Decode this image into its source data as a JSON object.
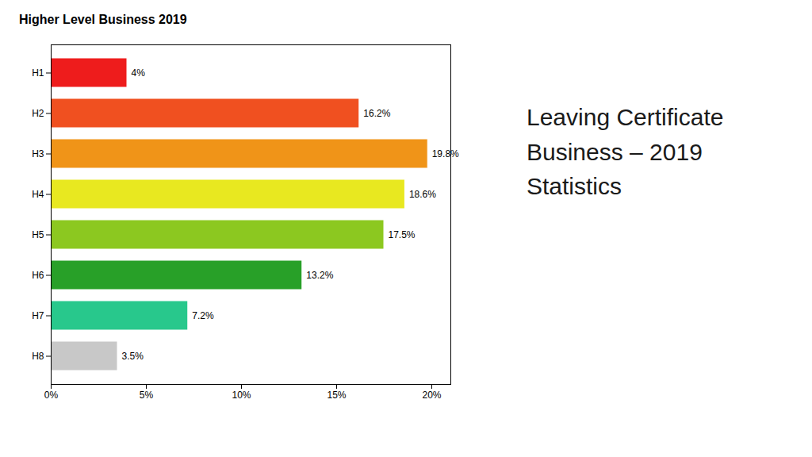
{
  "chart_data": {
    "type": "bar",
    "title": "Higher Level Business 2019",
    "orientation": "horizontal",
    "categories": [
      "H1",
      "H2",
      "H3",
      "H4",
      "H5",
      "H6",
      "H7",
      "H8"
    ],
    "values": [
      4.0,
      16.2,
      19.8,
      18.6,
      17.5,
      13.2,
      7.2,
      3.5
    ],
    "value_labels": [
      "4%",
      "16.2%",
      "19.8%",
      "18.6%",
      "17.5%",
      "13.2%",
      "7.2%",
      "3.5%"
    ],
    "colors": [
      "#ee1c1c",
      "#f05020",
      "#f09418",
      "#e8e820",
      "#8cc820",
      "#28a028",
      "#28c88c",
      "#c8c8c8"
    ],
    "data_labels": true,
    "grid": false,
    "xlim": [
      0,
      21
    ],
    "xticks": [
      {
        "value": 0,
        "label": "0%"
      },
      {
        "value": 5,
        "label": "5%"
      },
      {
        "value": 10,
        "label": "10%"
      },
      {
        "value": 15,
        "label": "15%"
      },
      {
        "value": 20,
        "label": "20%"
      }
    ],
    "annotations": [
      "Leaving Certificate",
      "Business – 2019",
      "Statistics"
    ]
  }
}
